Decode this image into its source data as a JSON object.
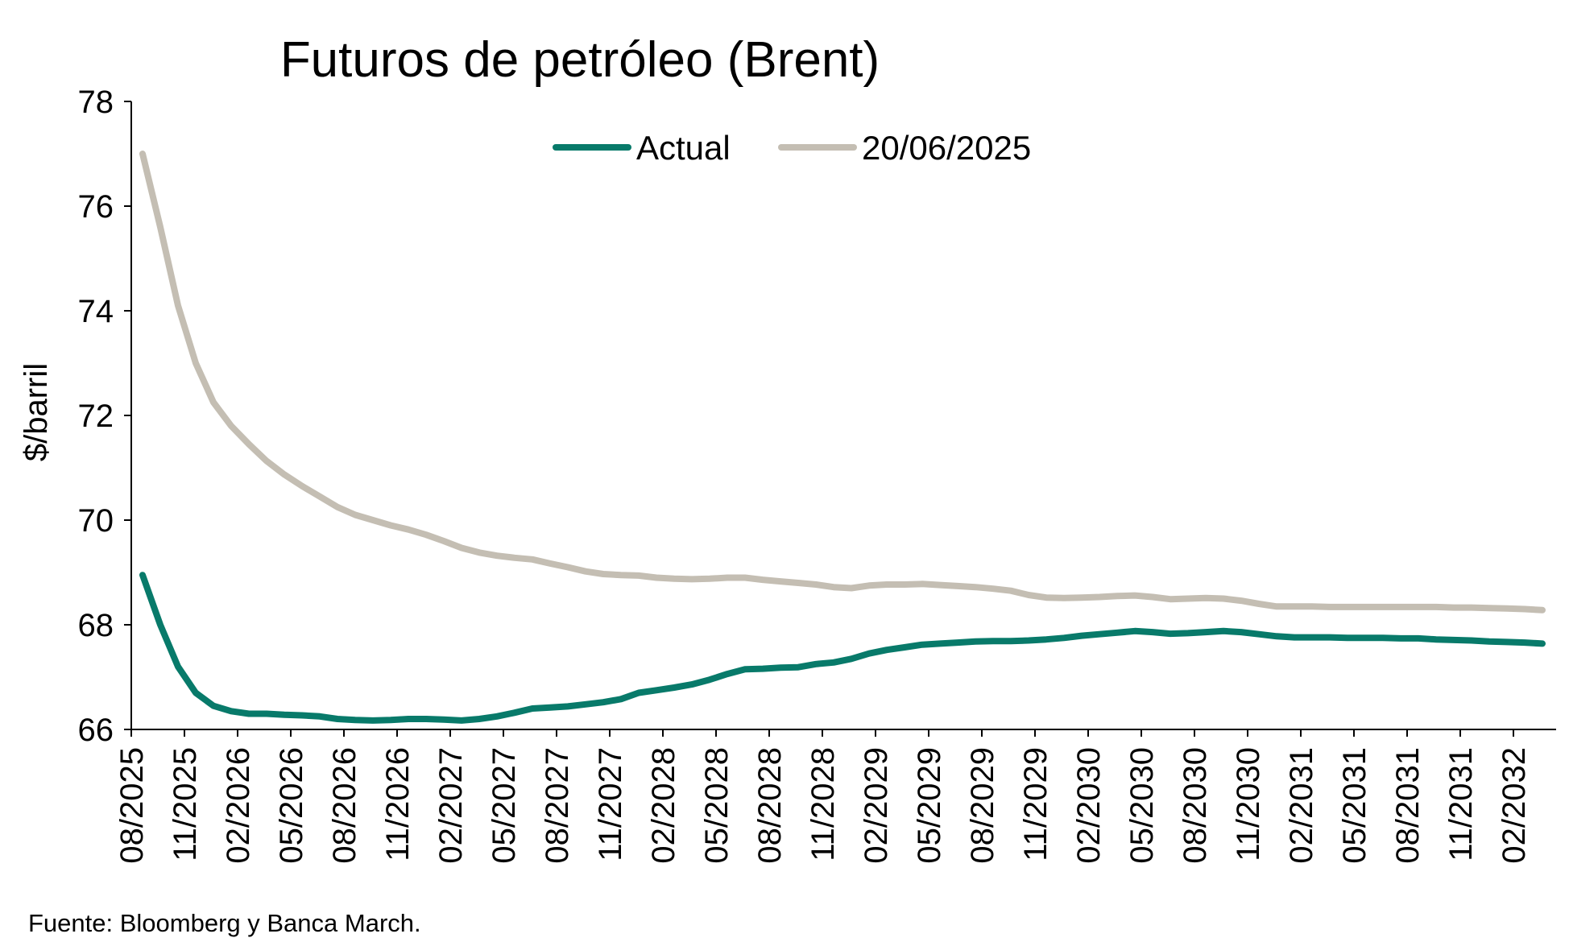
{
  "chart_data": {
    "type": "line",
    "title": "Futuros de petróleo (Brent)",
    "ylabel": "$/barril",
    "xlabel": "",
    "ylim": [
      66,
      78
    ],
    "yticks": [
      66,
      68,
      70,
      72,
      74,
      76,
      78
    ],
    "grid": false,
    "legend_position": "top",
    "source": "Fuente: Bloomberg y Banca March.",
    "x_tick_labels": [
      "08/2025",
      "11/2025",
      "02/2026",
      "05/2026",
      "08/2026",
      "11/2026",
      "02/2027",
      "05/2027",
      "08/2027",
      "11/2027",
      "02/2028",
      "05/2028",
      "08/2028",
      "11/2028",
      "02/2029",
      "05/2029",
      "08/2029",
      "11/2029",
      "02/2030",
      "05/2030",
      "08/2030",
      "11/2030",
      "02/2031",
      "05/2031",
      "08/2031",
      "11/2031",
      "02/2032"
    ],
    "x_start": "08/2025",
    "x_frequency": "monthly",
    "series": [
      {
        "name": "Actual",
        "color": "#087a6a",
        "values": [
          68.95,
          68.0,
          67.2,
          66.7,
          66.45,
          66.35,
          66.3,
          66.3,
          66.28,
          66.27,
          66.25,
          66.2,
          66.18,
          66.17,
          66.18,
          66.2,
          66.2,
          66.19,
          66.17,
          66.2,
          66.25,
          66.32,
          66.4,
          66.42,
          66.44,
          66.48,
          66.52,
          66.58,
          66.7,
          66.75,
          66.8,
          66.86,
          66.95,
          67.06,
          67.15,
          67.16,
          67.18,
          67.19,
          67.25,
          67.28,
          67.35,
          67.45,
          67.52,
          67.57,
          67.62,
          67.64,
          67.66,
          67.68,
          67.69,
          67.69,
          67.7,
          67.72,
          67.75,
          67.79,
          67.82,
          67.85,
          67.88,
          67.86,
          67.83,
          67.84,
          67.86,
          67.88,
          67.86,
          67.82,
          67.78,
          67.76,
          67.76,
          67.76,
          67.75,
          67.75,
          67.75,
          67.74,
          67.74,
          67.72,
          67.71,
          67.7,
          67.68,
          67.67,
          67.66,
          67.64
        ]
      },
      {
        "name": "20/06/2025",
        "color": "#c4beb3",
        "values": [
          77.0,
          75.6,
          74.1,
          73.0,
          72.25,
          71.8,
          71.45,
          71.13,
          70.87,
          70.65,
          70.45,
          70.25,
          70.1,
          70.0,
          69.9,
          69.82,
          69.72,
          69.6,
          69.47,
          69.38,
          69.32,
          69.28,
          69.25,
          69.17,
          69.1,
          69.02,
          68.97,
          68.95,
          68.94,
          68.9,
          68.88,
          68.87,
          68.88,
          68.9,
          68.9,
          68.86,
          68.83,
          68.8,
          68.77,
          68.72,
          68.7,
          68.75,
          68.77,
          68.77,
          68.78,
          68.76,
          68.74,
          68.72,
          68.69,
          68.65,
          68.57,
          68.52,
          68.51,
          68.52,
          68.53,
          68.55,
          68.56,
          68.53,
          68.49,
          68.5,
          68.51,
          68.5,
          68.46,
          68.4,
          68.35,
          68.35,
          68.35,
          68.34,
          68.34,
          68.34,
          68.34,
          68.34,
          68.34,
          68.34,
          68.33,
          68.33,
          68.32,
          68.31,
          68.3,
          68.28
        ]
      }
    ]
  }
}
